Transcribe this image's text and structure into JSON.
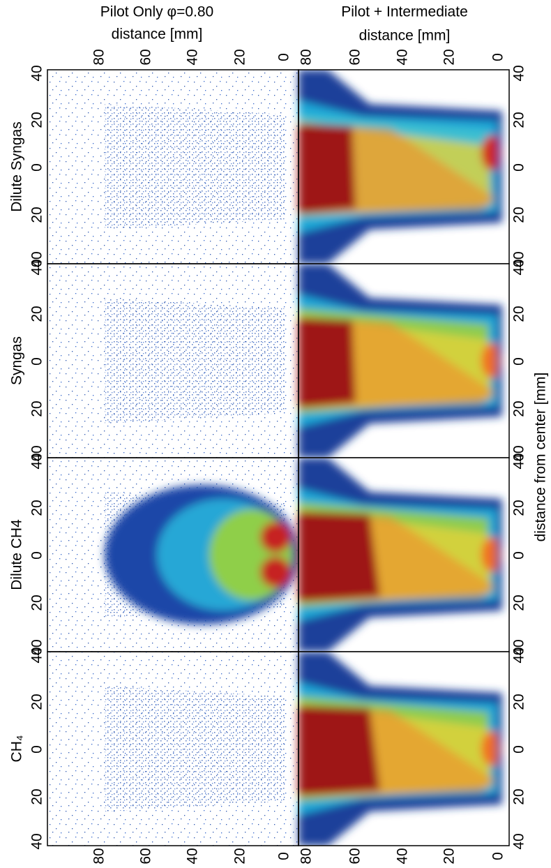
{
  "columns": [
    {
      "title": "Pilot Only φ=0.80",
      "axis_label": "distance [mm]",
      "ticks": [
        "80",
        "60",
        "40",
        "20",
        "0"
      ]
    },
    {
      "title": "Pilot + Intermediate",
      "axis_label": "distance [mm]",
      "ticks": [
        "80",
        "60",
        "40",
        "20",
        "0"
      ]
    }
  ],
  "rows": [
    {
      "label": "Dilute Syngas",
      "ticks": [
        "40",
        "20",
        "0",
        "20",
        "40"
      ]
    },
    {
      "label": "Syngas",
      "ticks": [
        "40",
        "20",
        "0",
        "20",
        "40"
      ]
    },
    {
      "label": "Dilute CH4",
      "ticks": [
        "40",
        "20",
        "0",
        "20",
        "40"
      ]
    },
    {
      "label": "CH₄",
      "ticks": [
        "40",
        "20",
        "0",
        "20",
        "40"
      ]
    }
  ],
  "side_axis_label": "distance from center [mm]"
}
